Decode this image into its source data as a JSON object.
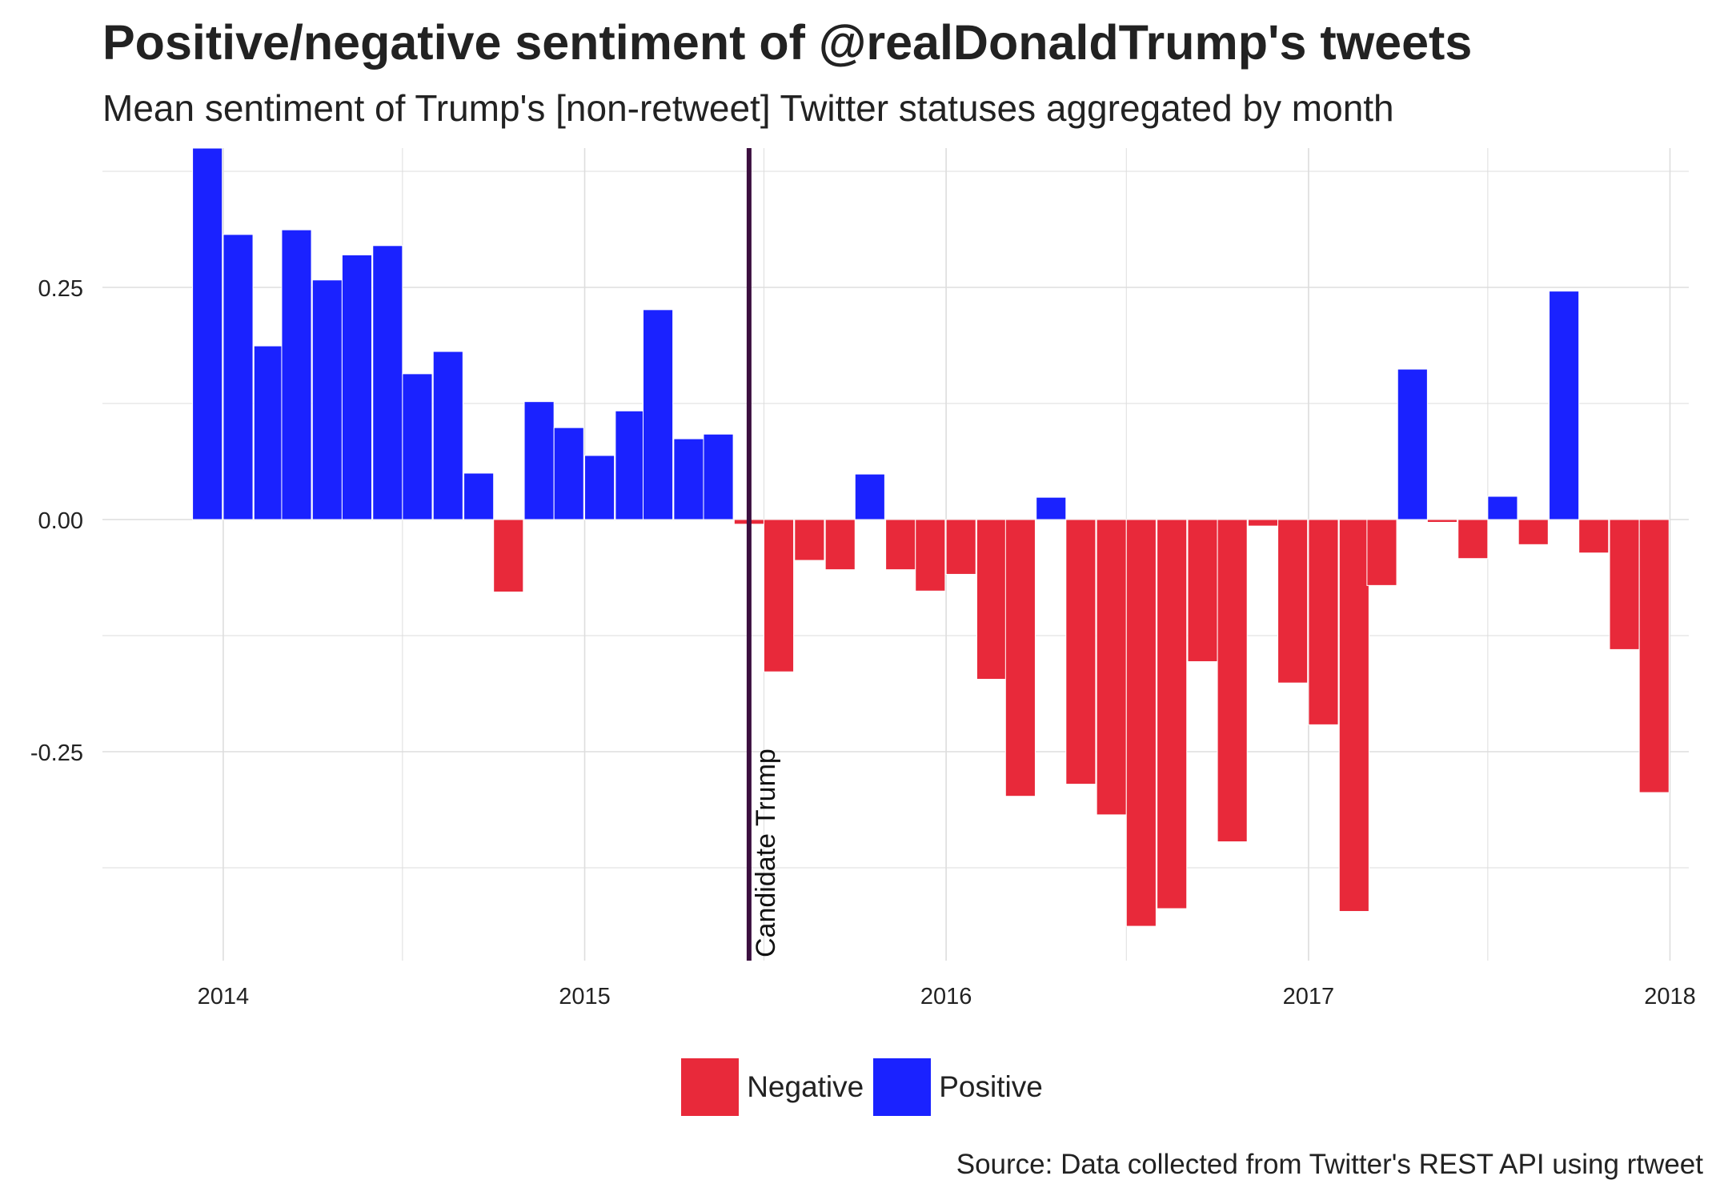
{
  "title": "Positive/negative sentiment of @realDonaldTrump's tweets",
  "subtitle": "Mean sentiment of Trump's [non-retweet] Twitter statuses aggregated by month",
  "caption": "Source: Data collected from Twitter's REST API using rtweet",
  "colors": {
    "positive": "#1a22ff",
    "negative": "#e8293a",
    "vline": "#3b0f3f",
    "grid": "#dddddd"
  },
  "legend": {
    "position": "bottom",
    "items": [
      {
        "label": "Negative",
        "color": "#e8293a"
      },
      {
        "label": "Positive",
        "color": "#1a22ff"
      }
    ]
  },
  "chart_data": {
    "type": "bar",
    "xlabel": "",
    "ylabel": "",
    "ylim": [
      -0.475,
      0.4
    ],
    "xlim": [
      "2013-09-01",
      "2018-01-20"
    ],
    "grid": true,
    "x_ticks": [
      "2014",
      "2015",
      "2016",
      "2017",
      "2018"
    ],
    "y_ticks": [
      "-0.25",
      "0.00",
      "0.25"
    ],
    "annotation": {
      "label": "Candidate Trump",
      "x": "2015-06-16"
    },
    "months": [
      "2013-12",
      "2014-01",
      "2014-02",
      "2014-03",
      "2014-04",
      "2014-05",
      "2014-06",
      "2014-07",
      "2014-08",
      "2014-09",
      "2014-10",
      "2014-11",
      "2014-12",
      "2015-01",
      "2015-02",
      "2015-03",
      "2015-04",
      "2015-05",
      "2015-06",
      "2015-07",
      "2015-08",
      "2015-09",
      "2015-10",
      "2015-11",
      "2015-12",
      "2016-01",
      "2016-02",
      "2016-03",
      "2016-04",
      "2016-05",
      "2016-06",
      "2016-07",
      "2016-08",
      "2016-09",
      "2016-10",
      "2016-11",
      "2016-12",
      "2017-01",
      "2017-02",
      "2017-03",
      "2017-04",
      "2017-05",
      "2017-06",
      "2017-07",
      "2017-08",
      "2017-09",
      "2017-10",
      "2017-11",
      "2017-12"
    ],
    "values": [
      0.4,
      0.307,
      0.187,
      0.312,
      0.258,
      0.285,
      0.295,
      0.157,
      0.181,
      0.05,
      -0.078,
      0.127,
      0.099,
      0.069,
      0.117,
      0.226,
      0.087,
      0.092,
      -0.005,
      -0.164,
      -0.044,
      -0.054,
      0.049,
      -0.054,
      -0.077,
      -0.059,
      -0.172,
      -0.298,
      0.024,
      -0.285,
      -0.318,
      -0.438,
      -0.419,
      -0.153,
      -0.347,
      -0.007,
      -0.176,
      -0.221,
      -0.422,
      -0.071,
      0.162,
      -0.003,
      -0.042,
      0.025,
      -0.027,
      0.246,
      -0.036,
      -0.14,
      -0.294
    ]
  }
}
